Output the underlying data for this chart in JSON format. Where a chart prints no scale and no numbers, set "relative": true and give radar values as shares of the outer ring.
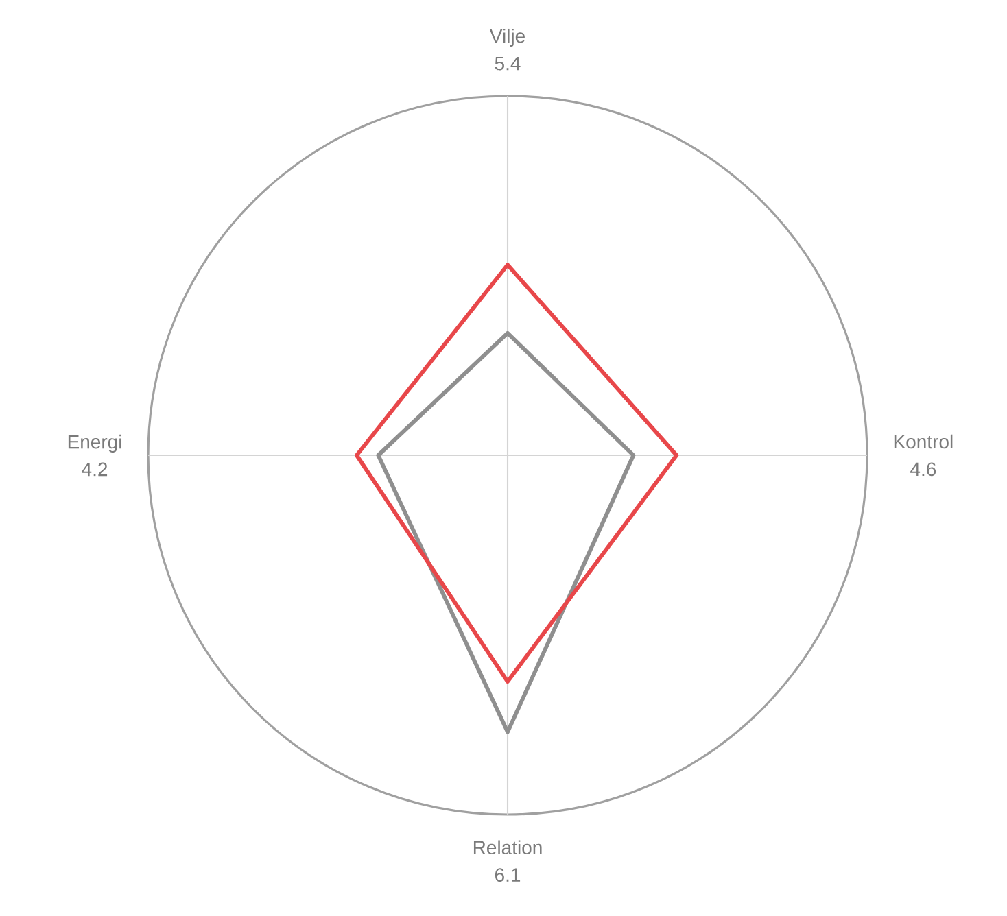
{
  "chart_data": {
    "type": "radar",
    "relative": true,
    "categories": [
      "Vilje",
      "Kontrol",
      "Relation",
      "Energi"
    ],
    "annotations": [
      "5.4",
      "4.6",
      "6.1",
      "4.2"
    ],
    "series": [
      {
        "color": "#8f8f8f",
        "values": [
          0.34,
          0.35,
          0.77,
          0.36
        ]
      },
      {
        "color": "#e8474a",
        "values": [
          0.53,
          0.47,
          0.63,
          0.42
        ]
      }
    ]
  }
}
